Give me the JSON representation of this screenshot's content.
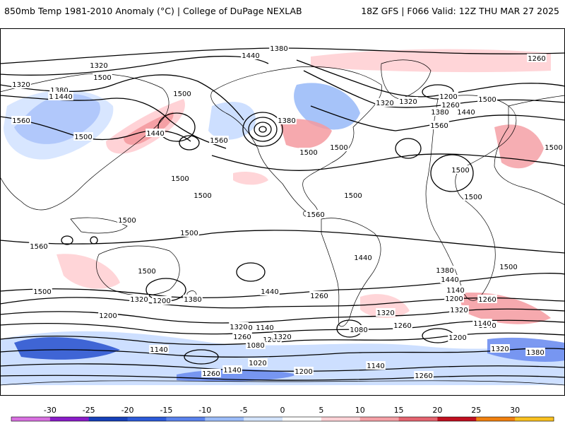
{
  "header": {
    "left": "850mb Temp 1981-2010 Anomaly (°C) | College of DuPage NEXLAB",
    "right": "18Z GFS | F066 Valid: 12Z THU MAR 27 2025"
  },
  "colors": {
    "background": "#ffffff",
    "land_lines": "#000000",
    "cold_strong": "#3058d0",
    "cold_medium": "#6e8ef0",
    "cold_light": "#c8dcff",
    "warm_light": "#ffd0d4",
    "warm_medium": "#f49aa0",
    "warm_strong": "#e06070"
  },
  "contours": {
    "labels": [
      "1380",
      "1440",
      "1320",
      "1380",
      "1440",
      "1320",
      "1260",
      "1560",
      "1500",
      "1500",
      "1440",
      "1500",
      "1560",
      "1380",
      "1500",
      "1500",
      "1320",
      "1320",
      "1200",
      "1260",
      "1380",
      "1440",
      "1560",
      "1500",
      "1440",
      "1500",
      "1500",
      "1500",
      "1500",
      "1500",
      "1500",
      "1500",
      "1560",
      "1500",
      "1560",
      "1500",
      "1440",
      "1380",
      "1500",
      "1440",
      "1500",
      "1440",
      "1320",
      "1200",
      "1380",
      "1260",
      "1140",
      "1320",
      "1260",
      "1200",
      "1260",
      "1320",
      "1080",
      "1140",
      "1200",
      "1080",
      "1140",
      "1260",
      "1200",
      "1080",
      "1320",
      "1200",
      "1140",
      "1140",
      "1020",
      "1140",
      "1200",
      "1260",
      "1260",
      "1320",
      "1380",
      "1320",
      "1140"
    ]
  },
  "colorbar": {
    "ticks": [
      "-30",
      "-25",
      "-20",
      "-15",
      "-10",
      "-5",
      "0",
      "5",
      "10",
      "15",
      "20",
      "25",
      "30"
    ],
    "colors": [
      "#d870e0",
      "#8a1cc8",
      "#1640b8",
      "#2c5ad8",
      "#5a82ec",
      "#9cbcf8",
      "#d4e4fc",
      "#ffffff",
      "#ffd2d6",
      "#f4a0a6",
      "#e46470",
      "#c01020",
      "#f08010",
      "#f8c020"
    ]
  }
}
